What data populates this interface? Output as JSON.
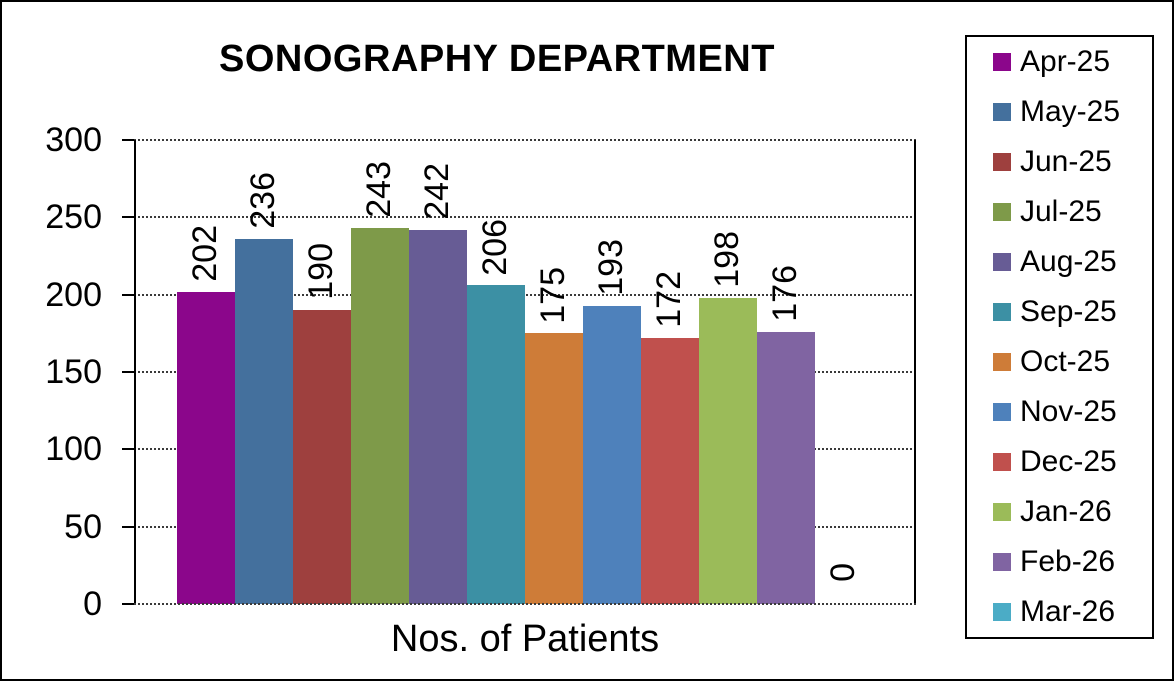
{
  "chart_data": {
    "type": "bar",
    "title": "SONOGRAPHY DEPARTMENT",
    "xlabel": "Nos. of Patients",
    "ylabel": "",
    "ylim": [
      0,
      300
    ],
    "yticks": [
      0,
      50,
      100,
      150,
      200,
      250,
      300
    ],
    "grid": "horizontal dotted gridlines",
    "legend_position": "right",
    "categories": [
      "Apr-25",
      "May-25",
      "Jun-25",
      "Jul-25",
      "Aug-25",
      "Sep-25",
      "Oct-25",
      "Nov-25",
      "Dec-25",
      "Jan-26",
      "Feb-26",
      "Mar-26"
    ],
    "values": [
      202,
      236,
      190,
      243,
      242,
      206,
      175,
      193,
      172,
      198,
      176,
      0
    ],
    "series": [
      {
        "name": "Apr-25",
        "value": 202,
        "color": "#8B068B"
      },
      {
        "name": "May-25",
        "value": 236,
        "color": "#44709D"
      },
      {
        "name": "Jun-25",
        "value": 190,
        "color": "#9E403E"
      },
      {
        "name": "Jul-25",
        "value": 243,
        "color": "#7E9A49"
      },
      {
        "name": "Aug-25",
        "value": 242,
        "color": "#675C95"
      },
      {
        "name": "Sep-25",
        "value": 206,
        "color": "#3C90A4"
      },
      {
        "name": "Oct-25",
        "value": 175,
        "color": "#CE7C38"
      },
      {
        "name": "Nov-25",
        "value": 193,
        "color": "#4E81BB"
      },
      {
        "name": "Dec-25",
        "value": 172,
        "color": "#C0504D"
      },
      {
        "name": "Jan-26",
        "value": 198,
        "color": "#9BBB59"
      },
      {
        "name": "Feb-26",
        "value": 176,
        "color": "#8064A2"
      },
      {
        "name": "Mar-26",
        "value": 0,
        "color": "#4BACC6"
      }
    ],
    "data_label_rotation_deg": 270,
    "axis_color": "#000000",
    "background_color": "#FFFFFF"
  }
}
